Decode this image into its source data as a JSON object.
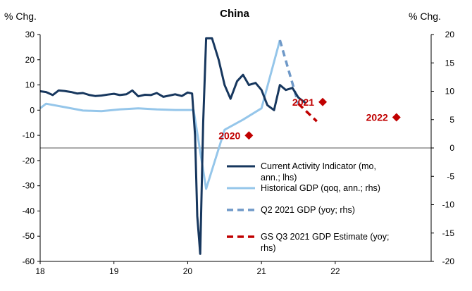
{
  "chart_data": {
    "type": "line",
    "title": "China",
    "ylabel_left": "% Chg.",
    "ylabel_right": "% Chg.",
    "ylim_left": [
      -60,
      30
    ],
    "ylim_right": [
      -20,
      20
    ],
    "xlim": [
      18,
      23.3
    ],
    "x_ticks": [
      {
        "value": 18,
        "label": "18"
      },
      {
        "value": 19,
        "label": "19"
      },
      {
        "value": 20,
        "label": "20"
      },
      {
        "value": 21,
        "label": "21"
      },
      {
        "value": 22,
        "label": "22"
      }
    ],
    "y_ticks_left": [
      {
        "value": 30,
        "label": "30"
      },
      {
        "value": 20,
        "label": "20"
      },
      {
        "value": 10,
        "label": "10"
      },
      {
        "value": 0,
        "label": "0"
      },
      {
        "value": -10,
        "label": "-10"
      },
      {
        "value": -20,
        "label": "-20"
      },
      {
        "value": -30,
        "label": "-30"
      },
      {
        "value": -40,
        "label": "-40"
      },
      {
        "value": -50,
        "label": "-50"
      },
      {
        "value": -60,
        "label": "-60"
      }
    ],
    "y_ticks_right": [
      {
        "value": 20,
        "label": "20"
      },
      {
        "value": 15,
        "label": "15"
      },
      {
        "value": 10,
        "label": "10"
      },
      {
        "value": 5,
        "label": "5"
      },
      {
        "value": 0,
        "label": "0"
      },
      {
        "value": -5,
        "label": "-5"
      },
      {
        "value": -10,
        "label": "-10"
      },
      {
        "value": -15,
        "label": "-15"
      },
      {
        "value": -20,
        "label": "-20"
      }
    ],
    "series": [
      {
        "name": "Current Activity Indicator (mo, ann.; lhs)",
        "axis": "left",
        "style": "solid",
        "color": "#17375e",
        "points": [
          [
            18.0,
            7.5
          ],
          [
            18.08,
            7.2
          ],
          [
            18.17,
            6.0
          ],
          [
            18.25,
            7.8
          ],
          [
            18.33,
            7.6
          ],
          [
            18.42,
            7.2
          ],
          [
            18.5,
            6.6
          ],
          [
            18.58,
            6.8
          ],
          [
            18.67,
            6.0
          ],
          [
            18.75,
            5.6
          ],
          [
            18.83,
            5.8
          ],
          [
            18.92,
            6.2
          ],
          [
            19.0,
            6.5
          ],
          [
            19.08,
            6.0
          ],
          [
            19.17,
            6.3
          ],
          [
            19.25,
            7.8
          ],
          [
            19.33,
            5.5
          ],
          [
            19.42,
            6.1
          ],
          [
            19.5,
            6.0
          ],
          [
            19.58,
            6.8
          ],
          [
            19.67,
            5.3
          ],
          [
            19.75,
            5.8
          ],
          [
            19.83,
            6.3
          ],
          [
            19.92,
            5.6
          ],
          [
            20.0,
            7.0
          ],
          [
            20.06,
            6.6
          ],
          [
            20.1,
            -10
          ],
          [
            20.13,
            -42
          ],
          [
            20.17,
            -57
          ],
          [
            20.21,
            -5
          ],
          [
            20.25,
            28.5
          ],
          [
            20.33,
            28.5
          ],
          [
            20.42,
            20
          ],
          [
            20.5,
            10
          ],
          [
            20.58,
            4.5
          ],
          [
            20.67,
            11.5
          ],
          [
            20.75,
            14.0
          ],
          [
            20.83,
            10.0
          ],
          [
            20.92,
            10.8
          ],
          [
            21.0,
            8.0
          ],
          [
            21.08,
            2.0
          ],
          [
            21.17,
            0.0
          ],
          [
            21.25,
            10.0
          ],
          [
            21.33,
            8.0
          ],
          [
            21.42,
            8.8
          ],
          [
            21.5,
            5.0
          ],
          [
            21.6,
            2.8
          ]
        ]
      },
      {
        "name": "Historical GDP (qoq, ann.; rhs)",
        "axis": "right",
        "style": "solid",
        "color": "#95c6ea",
        "points": [
          [
            18.0,
            7.0
          ],
          [
            18.08,
            7.8
          ],
          [
            18.33,
            7.2
          ],
          [
            18.58,
            6.6
          ],
          [
            18.83,
            6.5
          ],
          [
            19.08,
            6.8
          ],
          [
            19.33,
            7.0
          ],
          [
            19.58,
            6.8
          ],
          [
            19.83,
            6.7
          ],
          [
            20.08,
            6.7
          ],
          [
            20.25,
            -7.2
          ],
          [
            20.5,
            3.2
          ],
          [
            20.75,
            5.0
          ],
          [
            21.0,
            7.0
          ],
          [
            21.25,
            19.0
          ]
        ]
      },
      {
        "name": "Q2 2021 GDP (yoy; rhs)",
        "axis": "right",
        "style": "dashed",
        "color": "#6f99c8",
        "points": [
          [
            21.25,
            19.0
          ],
          [
            21.5,
            7.8
          ]
        ]
      },
      {
        "name": "GS Q3 2021 GDP Estimate (yoy; rhs)",
        "axis": "right",
        "style": "dashed",
        "color": "#c00000",
        "points": [
          [
            21.5,
            7.8
          ],
          [
            21.75,
            4.7
          ]
        ]
      }
    ],
    "markers": [
      {
        "label": "2020",
        "x": 20.83,
        "value": 2.2,
        "axis": "right",
        "color": "#c00000"
      },
      {
        "label": "2021",
        "x": 21.83,
        "value": 8.1,
        "axis": "right",
        "color": "#c00000"
      },
      {
        "label": "2022",
        "x": 22.83,
        "value": 5.4,
        "axis": "right",
        "color": "#c00000"
      }
    ],
    "legend": {
      "position": "inside-bottom-right",
      "entries": [
        {
          "label_lines": [
            "Current Activity Indicator (mo,",
            "ann.; lhs)"
          ],
          "color": "#17375e",
          "style": "solid"
        },
        {
          "label_lines": [
            "Historical GDP (qoq, ann.; rhs)"
          ],
          "color": "#95c6ea",
          "style": "solid"
        },
        {
          "label_lines": [
            "Q2 2021 GDP (yoy; rhs)"
          ],
          "color": "#6f99c8",
          "style": "dashed"
        },
        {
          "label_lines": [
            "GS Q3 2021 GDP Estimate (yoy;",
            "rhs)"
          ],
          "color": "#c00000",
          "style": "dashed"
        }
      ]
    },
    "zero_reference_line": {
      "axis": "right",
      "value": 0
    },
    "grid": false
  }
}
